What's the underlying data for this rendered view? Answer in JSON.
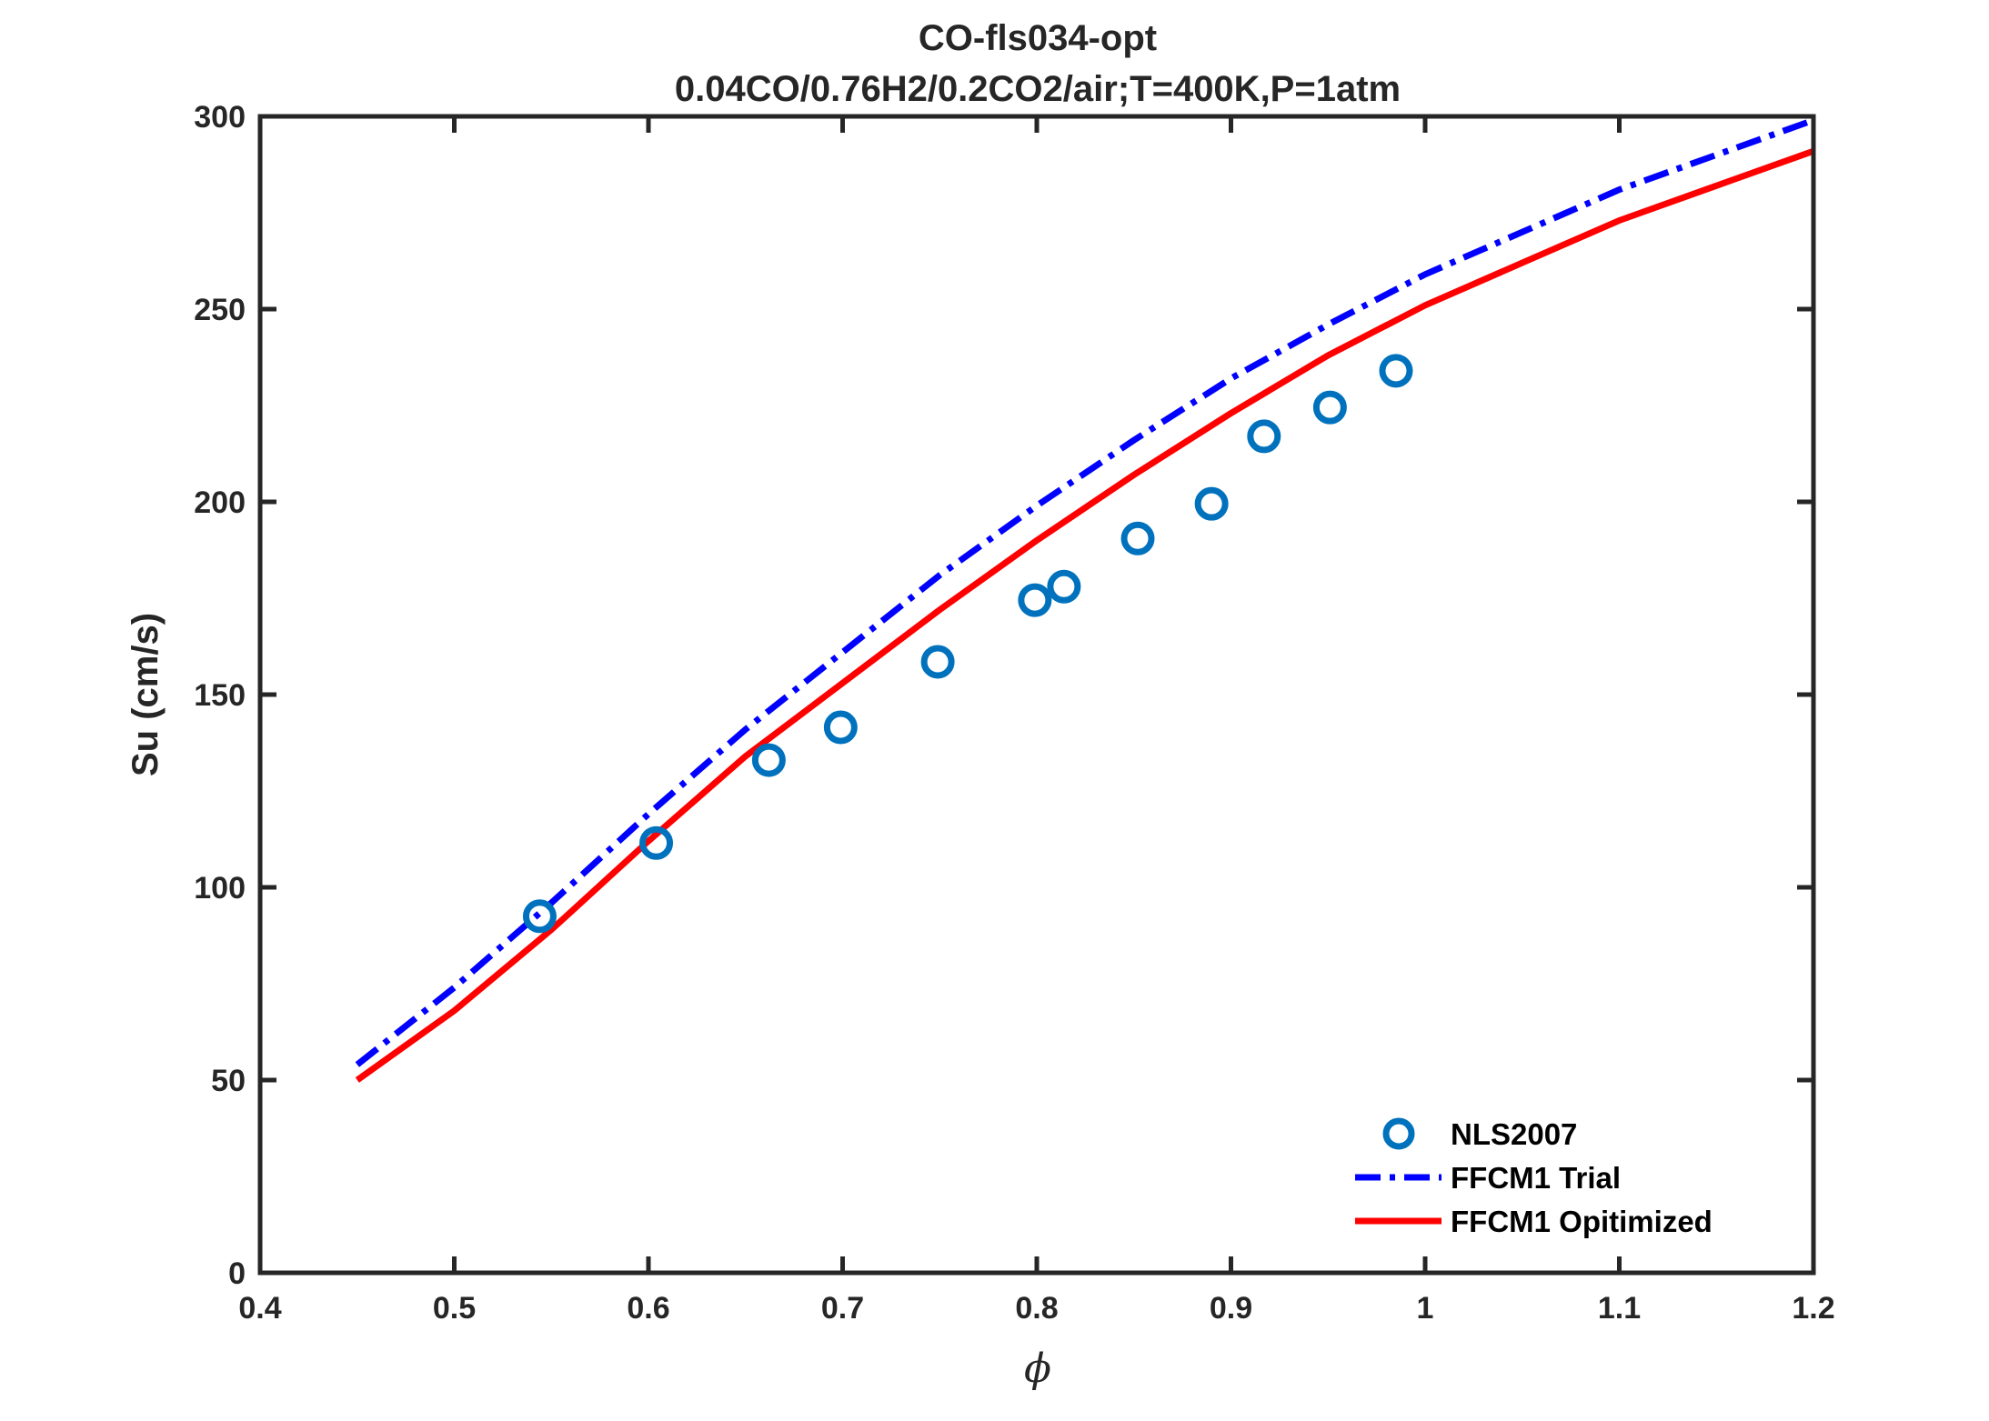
{
  "chart_data": {
    "type": "line",
    "title": "CO-fls034-opt",
    "subtitle": "0.04CO/0.76H2/0.2CO2/air;T=400K,P=1atm",
    "xlabel": "ϕ",
    "ylabel": "Su (cm/s)",
    "xlim": [
      0.4,
      1.2
    ],
    "ylim": [
      0,
      300
    ],
    "xticks": [
      "0.4",
      "0.5",
      "0.6",
      "0.7",
      "0.8",
      "0.9",
      "1",
      "1.1",
      "1.2"
    ],
    "yticks": [
      "0",
      "50",
      "100",
      "150",
      "200",
      "250",
      "300"
    ],
    "grid": false,
    "legend_position": "bottom-right",
    "series": [
      {
        "name": "NLS2007",
        "style": "markers",
        "marker": "circle",
        "color": "#0072BD",
        "x": [
          0.544,
          0.604,
          0.662,
          0.699,
          0.749,
          0.799,
          0.814,
          0.852,
          0.89,
          0.917,
          0.951,
          0.985
        ],
        "y": [
          92.5,
          111.5,
          133,
          141.5,
          158.5,
          174.5,
          178,
          190.5,
          199.5,
          217,
          224.5,
          234
        ]
      },
      {
        "name": "FFCM1 Trial",
        "style": "dash-dot",
        "color": "#0000FF",
        "x": [
          0.45,
          0.5,
          0.55,
          0.6,
          0.65,
          0.7,
          0.75,
          0.8,
          0.85,
          0.9,
          0.95,
          1.0,
          1.05,
          1.1,
          1.15,
          1.2
        ],
        "y": [
          54,
          74,
          96,
          119,
          141,
          161,
          181,
          199,
          216,
          232,
          246,
          259,
          270,
          281,
          290,
          299
        ]
      },
      {
        "name": "FFCM1 Opitimized",
        "style": "solid",
        "color": "#FF0000",
        "x": [
          0.45,
          0.5,
          0.55,
          0.6,
          0.65,
          0.7,
          0.75,
          0.8,
          0.85,
          0.9,
          0.95,
          1.0,
          1.05,
          1.1,
          1.15,
          1.2
        ],
        "y": [
          50,
          68,
          89,
          112,
          134,
          153,
          172,
          190,
          207,
          223,
          238,
          251,
          262,
          273,
          282,
          291
        ]
      }
    ]
  }
}
